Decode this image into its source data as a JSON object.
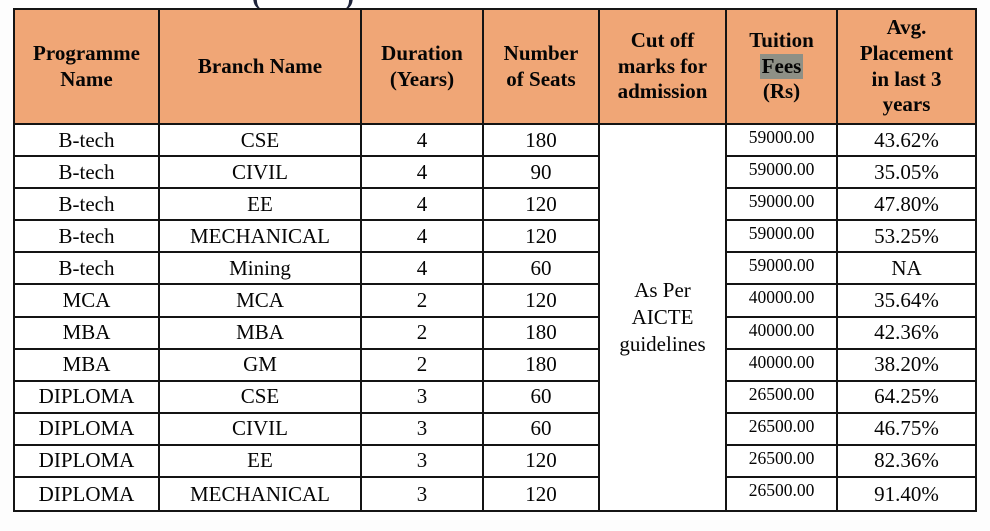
{
  "page": {
    "title_fragment_left": "(",
    "title_fragment_right": ")"
  },
  "colors": {
    "header_bg": "#f0a676",
    "border": "#141414",
    "text": "#050505",
    "fees_highlight_bg": "#8e9086"
  },
  "table": {
    "columns": [
      {
        "key": "programme",
        "label": "Programme Name",
        "label_lines": [
          "Programme",
          "Name"
        ]
      },
      {
        "key": "branch",
        "label": "Branch Name",
        "label_lines": [
          "Branch Name"
        ]
      },
      {
        "key": "duration",
        "label": "Duration (Years)",
        "label_lines": [
          "Duration",
          "(Years)"
        ]
      },
      {
        "key": "seats",
        "label": "Number of Seats",
        "label_lines": [
          "Number",
          "of Seats"
        ]
      },
      {
        "key": "cutoff",
        "label": "Cut off marks for admission",
        "label_lines": [
          "Cut off",
          "marks for",
          "admission"
        ]
      },
      {
        "key": "fees",
        "label": "Tuition Fees (Rs)",
        "label_lines": [
          "Tuition",
          "Fees",
          "(Rs)"
        ],
        "highlight_line_index": 1
      },
      {
        "key": "placement",
        "label": "Avg. Placement in last 3 years",
        "label_lines": [
          "Avg.",
          "Placement",
          "in last 3",
          "years"
        ]
      }
    ],
    "cutoff_merged_value": "As Per AICTE guidelines",
    "rows": [
      {
        "programme": "B-tech",
        "branch": "CSE",
        "duration": "4",
        "seats": "180",
        "fees": "59000.00",
        "placement": "43.62%"
      },
      {
        "programme": "B-tech",
        "branch": "CIVIL",
        "duration": "4",
        "seats": "90",
        "fees": "59000.00",
        "placement": "35.05%"
      },
      {
        "programme": "B-tech",
        "branch": "EE",
        "duration": "4",
        "seats": "120",
        "fees": "59000.00",
        "placement": "47.80%"
      },
      {
        "programme": "B-tech",
        "branch": "MECHANICAL",
        "duration": "4",
        "seats": "120",
        "fees": "59000.00",
        "placement": "53.25%"
      },
      {
        "programme": "B-tech",
        "branch": "Mining",
        "duration": "4",
        "seats": "60",
        "fees": "59000.00",
        "placement": "NA"
      },
      {
        "programme": "MCA",
        "branch": "MCA",
        "duration": "2",
        "seats": "120",
        "fees": "40000.00",
        "placement": "35.64%"
      },
      {
        "programme": "MBA",
        "branch": "MBA",
        "duration": "2",
        "seats": "180",
        "fees": "40000.00",
        "placement": "42.36%"
      },
      {
        "programme": "MBA",
        "branch": "GM",
        "duration": "2",
        "seats": "180",
        "fees": "40000.00",
        "placement": "38.20%"
      },
      {
        "programme": "DIPLOMA",
        "branch": "CSE",
        "duration": "3",
        "seats": "60",
        "fees": "26500.00",
        "placement": "64.25%"
      },
      {
        "programme": "DIPLOMA",
        "branch": "CIVIL",
        "duration": "3",
        "seats": "60",
        "fees": "26500.00",
        "placement": "46.75%"
      },
      {
        "programme": "DIPLOMA",
        "branch": "EE",
        "duration": "3",
        "seats": "120",
        "fees": "26500.00",
        "placement": "82.36%"
      },
      {
        "programme": "DIPLOMA",
        "branch": "MECHANICAL",
        "duration": "3",
        "seats": "120",
        "fees": "26500.00",
        "placement": "91.40%"
      }
    ]
  }
}
